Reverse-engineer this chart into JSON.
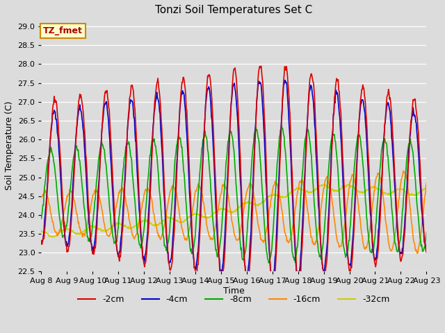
{
  "title": "Tonzi Soil Temperatures Set C",
  "xlabel": "Time",
  "ylabel": "Soil Temperature (C)",
  "ylim": [
    22.5,
    29.2
  ],
  "xlim": [
    0,
    360
  ],
  "bg_color": "#dcdcdc",
  "label_box_text": "TZ_fmet",
  "label_box_bg": "#ffffcc",
  "label_box_edge": "#cc8800",
  "series": {
    "-2cm": {
      "color": "#dd0000",
      "lw": 1.2
    },
    "-4cm": {
      "color": "#0000cc",
      "lw": 1.2
    },
    "-8cm": {
      "color": "#00aa00",
      "lw": 1.2
    },
    "-16cm": {
      "color": "#ff8800",
      "lw": 1.2
    },
    "-32cm": {
      "color": "#cccc00",
      "lw": 1.2
    }
  },
  "xtick_labels": [
    "Aug 8",
    "Aug 9",
    "Aug 10",
    "Aug 11",
    "Aug 12",
    "Aug 13",
    "Aug 14",
    "Aug 15",
    "Aug 16",
    "Aug 17",
    "Aug 18",
    "Aug 19",
    "Aug 20",
    "Aug 21",
    "Aug 22",
    "Aug 23"
  ],
  "xtick_positions": [
    0,
    24,
    48,
    72,
    96,
    120,
    144,
    168,
    192,
    216,
    240,
    264,
    288,
    312,
    336,
    360
  ]
}
